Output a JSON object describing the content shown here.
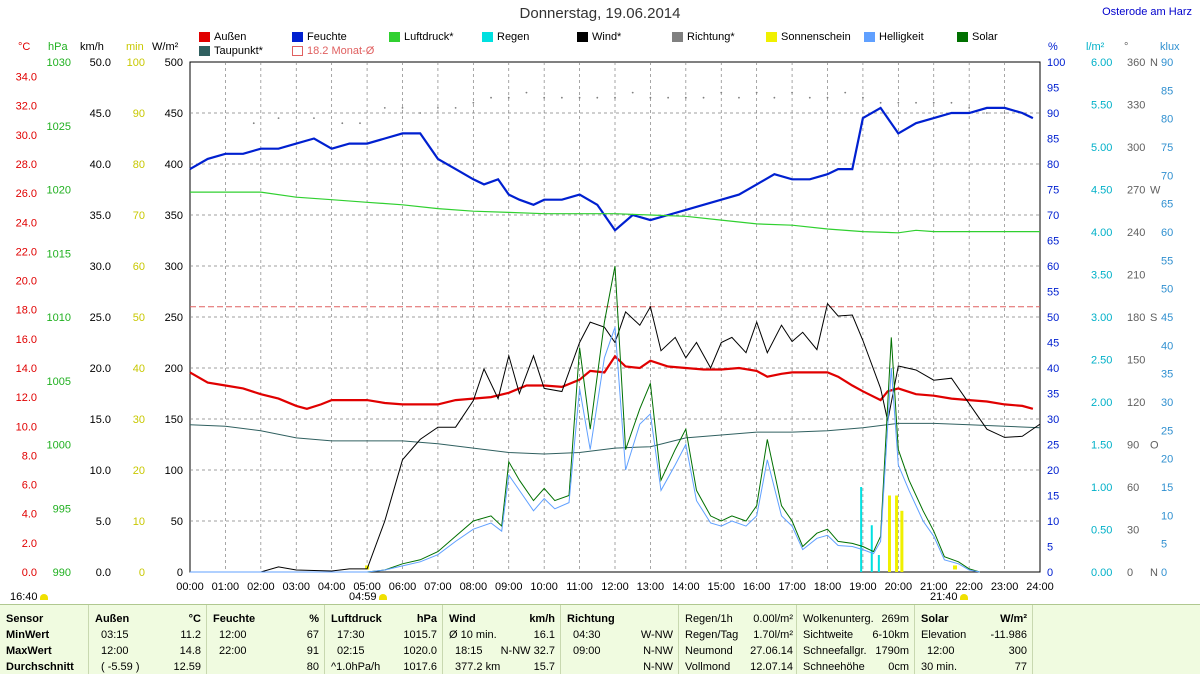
{
  "title": "Donnerstag, 19.06.2014",
  "station": "Osterode am Harz",
  "legend": [
    {
      "label": "Außen",
      "color": "#e00000"
    },
    {
      "label": "Feuchte",
      "color": "#0020d0"
    },
    {
      "label": "Luftdruck*",
      "color": "#30d030"
    },
    {
      "label": "Regen",
      "color": "#00e0e0"
    },
    {
      "label": "Wind*",
      "color": "#000000"
    },
    {
      "label": "Richtung*",
      "color": "#808080"
    },
    {
      "label": "Sonnenschein",
      "color": "#f0f000"
    },
    {
      "label": "Helligkeit",
      "color": "#60a0ff"
    },
    {
      "label": "Solar",
      "color": "#007000"
    },
    {
      "label": "Taupunkt*",
      "color": "#306060"
    },
    {
      "label": "18.2 Monat-Ø",
      "color": "#e06060"
    }
  ],
  "axis_units": {
    "temp": "°C",
    "pressure": "hPa",
    "wind": "km/h",
    "min": "min",
    "solar": "W/m²",
    "humidity": "%",
    "rain": "l/m²",
    "direction": "°",
    "lux": "klux"
  },
  "colors": {
    "temp": "#e00000",
    "humidity": "#0020d0",
    "pressure": "#30d030",
    "rain": "#00e0e0",
    "wind": "#000000",
    "sunshine": "#f0f000",
    "brightness": "#60a0ff",
    "solar": "#007000",
    "dewpoint": "#306060",
    "monthavg": "#e06060",
    "grid": "#808080"
  },
  "markers": {
    "sunrise": "04:59",
    "sunset": "21:40",
    "left_time": "16:40"
  },
  "chart_data": {
    "type": "line",
    "x_ticks": [
      "00:00",
      "01:00",
      "02:00",
      "03:00",
      "04:00",
      "05:00",
      "06:00",
      "07:00",
      "08:00",
      "09:00",
      "10:00",
      "11:00",
      "12:00",
      "13:00",
      "14:00",
      "15:00",
      "16:00",
      "17:00",
      "18:00",
      "19:00",
      "20:00",
      "21:00",
      "22:00",
      "23:00",
      "24:00"
    ],
    "xlim": [
      0,
      24
    ],
    "axes": {
      "temp": {
        "ticks": [
          "0.0",
          "2.0",
          "4.0",
          "6.0",
          "8.0",
          "10.0",
          "12.0",
          "14.0",
          "16.0",
          "18.0",
          "20.0",
          "22.0",
          "24.0",
          "26.0",
          "28.0",
          "30.0",
          "32.0",
          "34.0"
        ],
        "ylim": [
          0,
          35
        ]
      },
      "pressure": {
        "ticks": [
          "990",
          "995",
          "1000",
          "1005",
          "1010",
          "1015",
          "1020",
          "1025",
          "1030"
        ],
        "ylim": [
          990,
          1030
        ]
      },
      "wind": {
        "ticks": [
          "0.0",
          "5.0",
          "10.0",
          "15.0",
          "20.0",
          "25.0",
          "30.0",
          "35.0",
          "40.0",
          "45.0",
          "50.0"
        ],
        "ylim": [
          0,
          50
        ]
      },
      "minutes": {
        "ticks": [
          "0",
          "10",
          "20",
          "30",
          "40",
          "50",
          "60",
          "70",
          "80",
          "90",
          "100"
        ],
        "ylim": [
          0,
          100
        ]
      },
      "solar": {
        "ticks": [
          "0",
          "50",
          "100",
          "150",
          "200",
          "250",
          "300",
          "350",
          "400",
          "450",
          "500"
        ],
        "ylim": [
          0,
          500
        ]
      },
      "humidity": {
        "ticks": [
          "0",
          "5",
          "10",
          "15",
          "20",
          "25",
          "30",
          "35",
          "40",
          "45",
          "50",
          "55",
          "60",
          "65",
          "70",
          "75",
          "80",
          "85",
          "90",
          "95",
          "100"
        ],
        "ylim": [
          0,
          100
        ]
      },
      "rain": {
        "ticks": [
          "0.00",
          "0.50",
          "1.00",
          "1.50",
          "2.00",
          "2.50",
          "3.00",
          "3.50",
          "4.00",
          "4.50",
          "5.00",
          "5.50",
          "6.00"
        ],
        "ylim": [
          0,
          6
        ]
      },
      "direction": {
        "ticks": [
          "0",
          "30",
          "60",
          "90",
          "120",
          "150",
          "180",
          "210",
          "240",
          "270",
          "300",
          "330",
          "360"
        ],
        "ylim": [
          0,
          360
        ],
        "compass": [
          "N",
          "O",
          "S",
          "W",
          "N"
        ]
      },
      "lux": {
        "ticks": [
          "0",
          "5",
          "10",
          "15",
          "20",
          "25",
          "30",
          "35",
          "40",
          "45",
          "50",
          "55",
          "60",
          "65",
          "70",
          "75",
          "80",
          "85",
          "90"
        ],
        "ylim": [
          0,
          90
        ]
      }
    },
    "series": [
      {
        "key": "temp",
        "name": "Außen",
        "axis": "temp",
        "x": [
          0,
          0.5,
          1,
          1.5,
          2,
          2.5,
          3,
          3.3,
          3.7,
          4,
          4.5,
          5,
          5.5,
          6,
          6.5,
          7,
          7.5,
          8,
          8.5,
          9,
          9.5,
          10,
          10.5,
          11,
          11.3,
          11.7,
          12,
          12.3,
          12.7,
          13,
          13.5,
          14,
          14.5,
          15,
          15.5,
          16,
          16.3,
          16.7,
          17,
          17.5,
          18,
          18.3,
          18.7,
          19,
          19.5,
          19.7,
          20,
          20.5,
          21,
          21.5,
          22,
          22.5,
          23,
          23.5,
          23.8
        ],
        "y": [
          13.7,
          13.0,
          12.8,
          12.6,
          12.2,
          11.9,
          11.4,
          11.2,
          11.5,
          11.8,
          11.8,
          11.8,
          11.6,
          11.5,
          11.5,
          11.5,
          11.8,
          11.9,
          12.0,
          12.3,
          12.8,
          12.8,
          12.7,
          13.2,
          13.8,
          13.7,
          14.8,
          14.1,
          14.0,
          14.5,
          14.1,
          14.0,
          13.9,
          13.9,
          14.0,
          13.8,
          13.4,
          13.6,
          13.7,
          13.7,
          13.7,
          13.4,
          12.8,
          12.4,
          11.8,
          12.4,
          12.6,
          12.2,
          12.1,
          11.9,
          11.8,
          11.7,
          11.5,
          11.4,
          11.2
        ]
      },
      {
        "key": "dewpoint",
        "name": "Taupunkt*",
        "axis": "temp",
        "x": [
          0,
          1,
          2,
          3,
          4,
          5,
          6,
          7,
          8,
          9,
          10,
          11,
          12,
          13,
          14,
          15,
          16,
          17,
          18,
          19,
          20,
          21,
          22,
          23,
          24
        ],
        "y": [
          10.1,
          10.0,
          9.7,
          9.2,
          9.0,
          9.0,
          9.0,
          8.8,
          8.5,
          8.2,
          8.1,
          8.2,
          8.5,
          8.6,
          9.2,
          9.4,
          9.6,
          9.6,
          9.7,
          9.9,
          10.2,
          10.2,
          10.1,
          10.0,
          9.9
        ]
      },
      {
        "key": "humidity",
        "name": "Feuchte",
        "axis": "humidity",
        "x": [
          0,
          0.5,
          1,
          1.5,
          2,
          2.5,
          3,
          3.5,
          4,
          4.5,
          5,
          5.5,
          6,
          6.5,
          7,
          7.5,
          8,
          8.3,
          8.7,
          9,
          9.3,
          9.7,
          10,
          10.5,
          11,
          11.5,
          12,
          12.5,
          13,
          13.5,
          14,
          14.5,
          15,
          15.5,
          16,
          16.5,
          17,
          17.5,
          18,
          18.3,
          18.7,
          19,
          19.5,
          20,
          20.5,
          21,
          21.5,
          22,
          22.5,
          23,
          23.5,
          23.8
        ],
        "y": [
          79,
          81,
          82,
          82,
          83,
          83,
          84,
          85,
          83,
          84,
          84,
          85,
          86,
          86,
          81,
          79,
          77,
          76,
          77,
          74,
          73,
          72,
          73,
          73,
          74,
          72,
          67,
          70,
          69,
          70,
          71,
          72,
          73,
          74,
          76,
          78,
          77,
          77,
          78,
          79,
          79,
          89,
          91,
          86,
          88,
          89,
          90,
          90,
          91,
          91,
          90,
          89
        ]
      },
      {
        "key": "pressure",
        "name": "Luftdruck*",
        "axis": "pressure",
        "x": [
          0,
          1,
          2,
          3,
          4,
          5,
          6,
          7,
          8,
          9,
          10,
          11,
          12,
          13,
          14,
          15,
          16,
          17,
          18,
          19,
          20,
          20.5,
          21,
          22,
          23,
          24
        ],
        "y": [
          1019.8,
          1019.8,
          1019.8,
          1019.4,
          1019.2,
          1019.0,
          1018.8,
          1018.5,
          1018.3,
          1018.2,
          1018.1,
          1018.1,
          1018.1,
          1018.0,
          1017.9,
          1017.6,
          1017.3,
          1017.2,
          1016.9,
          1016.7,
          1016.6,
          1016.8,
          1016.7,
          1016.7,
          1016.7,
          1016.7
        ]
      },
      {
        "key": "wind",
        "name": "Wind*",
        "axis": "wind",
        "x": [
          0,
          1,
          2,
          2.5,
          3,
          4,
          4.5,
          5,
          5.5,
          6,
          6.5,
          7,
          7.5,
          8,
          8.3,
          8.7,
          9,
          9.3,
          9.7,
          10,
          10.5,
          11,
          11.3,
          11.7,
          12,
          12.3,
          12.7,
          13,
          13.3,
          13.7,
          14,
          14.3,
          14.7,
          15,
          15.3,
          15.7,
          16,
          16.3,
          16.7,
          17,
          17.3,
          17.7,
          18,
          18.3,
          18.7,
          19,
          19.5,
          19.7,
          20,
          20.5,
          21,
          21.5,
          22,
          22.5,
          23,
          23.5,
          24
        ],
        "y": [
          0,
          0,
          0,
          0.5,
          0.2,
          0.1,
          0.3,
          0.3,
          5,
          11,
          13,
          14.2,
          14.2,
          16.8,
          19.9,
          17,
          21.2,
          17.5,
          21.2,
          18,
          17.7,
          22.5,
          24.5,
          24,
          22.5,
          25.5,
          24.2,
          26,
          21.7,
          23,
          21,
          22.5,
          20,
          22.5,
          23,
          21.5,
          24.5,
          21.5,
          24.2,
          22.6,
          23.5,
          21.8,
          26.3,
          25.1,
          25.2,
          22.7,
          18,
          14.8,
          20.2,
          19.8,
          18.8,
          19,
          16.5,
          14,
          13.2,
          13.3,
          14.5
        ]
      },
      {
        "key": "solar",
        "name": "Solar",
        "axis": "solar",
        "x": [
          0,
          5,
          5.5,
          6,
          6.5,
          7,
          7.5,
          8,
          8.5,
          8.8,
          9,
          9.3,
          9.7,
          10,
          10.3,
          10.7,
          11,
          11.3,
          11.7,
          12,
          12.3,
          12.7,
          13,
          13.3,
          13.7,
          14,
          14.3,
          14.7,
          15,
          15.3,
          15.7,
          16,
          16.3,
          16.7,
          17,
          17.3,
          17.7,
          18,
          18.3,
          18.7,
          19,
          19.3,
          19.5,
          19.8,
          20,
          20.3,
          20.7,
          21,
          21.3,
          21.7,
          22,
          22.3
        ],
        "y": [
          0,
          0,
          2,
          8,
          12,
          20,
          35,
          50,
          55,
          45,
          108,
          90,
          70,
          82,
          70,
          75,
          220,
          140,
          245,
          300,
          120,
          160,
          185,
          90,
          120,
          140,
          80,
          55,
          50,
          55,
          50,
          65,
          130,
          65,
          50,
          25,
          38,
          42,
          30,
          28,
          25,
          20,
          35,
          230,
          120,
          90,
          60,
          40,
          15,
          10,
          3,
          0
        ]
      },
      {
        "key": "brightness",
        "name": "Helligkeit",
        "axis": "solar",
        "x": [
          0,
          5,
          5.5,
          6,
          6.5,
          7,
          7.5,
          8,
          8.5,
          8.8,
          9,
          9.3,
          9.7,
          10,
          10.3,
          10.7,
          11,
          11.3,
          11.7,
          12,
          12.3,
          12.7,
          13,
          13.3,
          13.7,
          14,
          14.3,
          14.7,
          15,
          15.3,
          15.7,
          16,
          16.3,
          16.7,
          17,
          17.3,
          17.7,
          18,
          18.3,
          18.7,
          19,
          19.3,
          19.5,
          19.8,
          20,
          20.3,
          20.7,
          21,
          21.3,
          21.7,
          22,
          22.3
        ],
        "y": [
          0,
          0,
          2,
          6,
          10,
          17,
          30,
          42,
          48,
          40,
          95,
          80,
          60,
          72,
          62,
          68,
          180,
          120,
          210,
          240,
          100,
          145,
          155,
          80,
          105,
          125,
          70,
          48,
          45,
          50,
          45,
          55,
          110,
          55,
          45,
          22,
          33,
          36,
          26,
          25,
          22,
          18,
          30,
          200,
          105,
          80,
          50,
          35,
          12,
          8,
          2,
          0
        ]
      },
      {
        "key": "humidity_dots",
        "name": "Richtung*",
        "axis": "humidity",
        "x": [
          1.8,
          2.5,
          3.5,
          4.3,
          4.8,
          5.5,
          6,
          6.5,
          7,
          7.5,
          8,
          8.5,
          9,
          9.5,
          10,
          10.5,
          11,
          11.5,
          12,
          12.5,
          13,
          13.5,
          14,
          14.5,
          15,
          15.5,
          16,
          16.5,
          17,
          17.5,
          18,
          18.5,
          19,
          19.5,
          20,
          20.5,
          21,
          21.5,
          22,
          22.5,
          23
        ],
        "y": [
          88,
          89,
          89,
          88,
          88,
          91,
          91,
          90,
          91,
          91,
          92,
          93,
          93,
          94,
          93,
          93,
          93,
          93,
          93,
          94,
          93,
          93,
          93,
          93,
          94,
          93,
          94,
          93,
          94,
          93,
          93,
          94,
          93,
          92,
          92,
          92,
          92,
          92,
          91,
          90,
          90
        ]
      }
    ],
    "rain_bars": {
      "axis": "rain",
      "x": [
        18.95,
        19.25,
        19.45
      ],
      "y": [
        1.0,
        0.55,
        0.2
      ]
    },
    "sunshine_bars": {
      "axis": "minutes",
      "x": [
        19.75,
        19.95,
        20.1
      ],
      "y": [
        15,
        15,
        12
      ]
    },
    "sunshine_marks": {
      "axis": "minutes",
      "x": [
        5.0,
        21.6
      ],
      "y": [
        0.5,
        0.5
      ]
    },
    "month_avg": {
      "axis": "temp",
      "value": 18.2
    }
  },
  "table": {
    "sensor": {
      "head": "Sensor",
      "rows": [
        "MinWert",
        "MaxWert",
        "Durchschnitt"
      ]
    },
    "aussen": {
      "head": "Außen",
      "unit": "°C",
      "rows": [
        [
          "03:15",
          "11.2"
        ],
        [
          "12:00",
          "14.8"
        ],
        [
          "( -5.59 )",
          "12.59"
        ]
      ]
    },
    "feuchte": {
      "head": "Feuchte",
      "unit": "%",
      "rows": [
        [
          "12:00",
          "67"
        ],
        [
          "22:00",
          "91"
        ],
        [
          "",
          "80"
        ]
      ]
    },
    "luftdruck": {
      "head": "Luftdruck",
      "unit": "hPa",
      "rows": [
        [
          "17:30",
          "1015.7"
        ],
        [
          "02:15",
          "1020.0"
        ],
        [
          "^1.0hPa/h",
          "1017.6"
        ]
      ]
    },
    "wind": {
      "head": "Wind",
      "unit": "km/h",
      "rows": [
        [
          "Ø 10 min.",
          "16.1"
        ],
        [
          "18:15",
          "N-NW 32.7"
        ],
        [
          "377.2 km",
          "15.7"
        ]
      ]
    },
    "richtung": {
      "head": "Richtung",
      "rows": [
        [
          "04:30",
          "W-NW"
        ],
        [
          "09:00",
          "N-NW"
        ],
        [
          "",
          "N-NW"
        ]
      ]
    },
    "regen": {
      "rows": [
        [
          "Regen/1h",
          "0.00l/m²"
        ],
        [
          "Regen/Tag",
          "1.70l/m²"
        ],
        [
          "Neumond",
          "27.06.14"
        ],
        [
          "Vollmond",
          "12.07.14"
        ]
      ]
    },
    "wolken": {
      "rows": [
        [
          "Wolkenunterg.",
          "269m"
        ],
        [
          "Sichtweite",
          "6-10km"
        ],
        [
          "Schneefallgr.",
          "1790m"
        ],
        [
          "Schneehöhe",
          "0cm"
        ]
      ]
    },
    "solar": {
      "head": "Solar",
      "unit": "W/m²",
      "rows": [
        [
          "Elevation",
          "-11.986"
        ],
        [
          "12:00",
          "300"
        ],
        [
          "30 min.",
          "77"
        ]
      ]
    }
  }
}
